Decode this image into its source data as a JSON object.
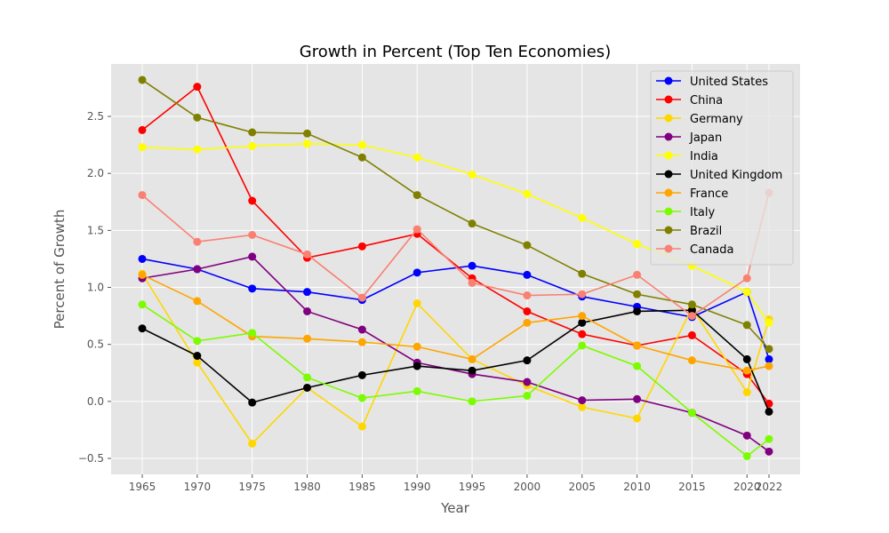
{
  "chart_data": {
    "type": "line",
    "title": "Growth in Percent (Top Ten Economies)",
    "xlabel": "Year",
    "ylabel": "Percent of Growth",
    "x": [
      "1965",
      "1970",
      "1975",
      "1980",
      "1985",
      "1990",
      "1995",
      "2000",
      "2005",
      "2010",
      "2015",
      "2020",
      "2022"
    ],
    "ylim": [
      -0.64,
      2.96
    ],
    "yticks": [
      "−0.5",
      "0.0",
      "0.5",
      "1.0",
      "1.5",
      "2.0",
      "2.5"
    ],
    "grid": true,
    "legend_position": "top-right",
    "background": "#e5e5e5",
    "series": [
      {
        "name": "United States",
        "color": "#0000ff",
        "values": [
          1.25,
          1.16,
          0.99,
          0.96,
          0.89,
          1.13,
          1.19,
          1.11,
          0.92,
          0.83,
          0.74,
          0.96,
          0.37
        ]
      },
      {
        "name": "China",
        "color": "#ff0000",
        "values": [
          2.38,
          2.76,
          1.76,
          1.26,
          1.36,
          1.47,
          1.08,
          0.79,
          0.59,
          0.49,
          0.58,
          0.24,
          -0.02
        ]
      },
      {
        "name": "Germany",
        "color": "#ffd700",
        "values": [
          1.12,
          0.34,
          -0.37,
          0.12,
          -0.22,
          0.86,
          0.37,
          0.14,
          -0.05,
          -0.15,
          0.82,
          0.08,
          0.72
        ]
      },
      {
        "name": "Japan",
        "color": "#800080",
        "values": [
          1.08,
          1.16,
          1.27,
          0.79,
          0.63,
          0.34,
          0.24,
          0.17,
          0.01,
          0.02,
          -0.1,
          -0.3,
          -0.44
        ]
      },
      {
        "name": "India",
        "color": "#ffff00",
        "values": [
          2.23,
          2.21,
          2.24,
          2.26,
          2.25,
          2.14,
          1.99,
          1.82,
          1.61,
          1.38,
          1.19,
          0.96,
          0.69
        ]
      },
      {
        "name": "United Kingdom",
        "color": "#000000",
        "values": [
          0.64,
          0.4,
          -0.01,
          0.12,
          0.23,
          0.31,
          0.27,
          0.36,
          0.69,
          0.79,
          0.8,
          0.37,
          -0.09
        ]
      },
      {
        "name": "France",
        "color": "#ffa500",
        "values": [
          1.11,
          0.88,
          0.57,
          0.55,
          0.52,
          0.48,
          0.37,
          0.69,
          0.75,
          0.49,
          0.36,
          0.27,
          0.31
        ]
      },
      {
        "name": "Italy",
        "color": "#7cfc00",
        "values": [
          0.85,
          0.53,
          0.6,
          0.21,
          0.03,
          0.09,
          0.0,
          0.05,
          0.49,
          0.31,
          -0.1,
          -0.48,
          -0.33
        ]
      },
      {
        "name": "Brazil",
        "color": "#808000",
        "values": [
          2.82,
          2.49,
          2.36,
          2.35,
          2.14,
          1.81,
          1.56,
          1.37,
          1.12,
          0.94,
          0.85,
          0.67,
          0.46
        ]
      },
      {
        "name": "Canada",
        "color": "#fa8072",
        "values": [
          1.81,
          1.4,
          1.46,
          1.29,
          0.91,
          1.51,
          1.04,
          0.93,
          0.94,
          1.11,
          0.75,
          1.08,
          1.83
        ]
      }
    ]
  }
}
